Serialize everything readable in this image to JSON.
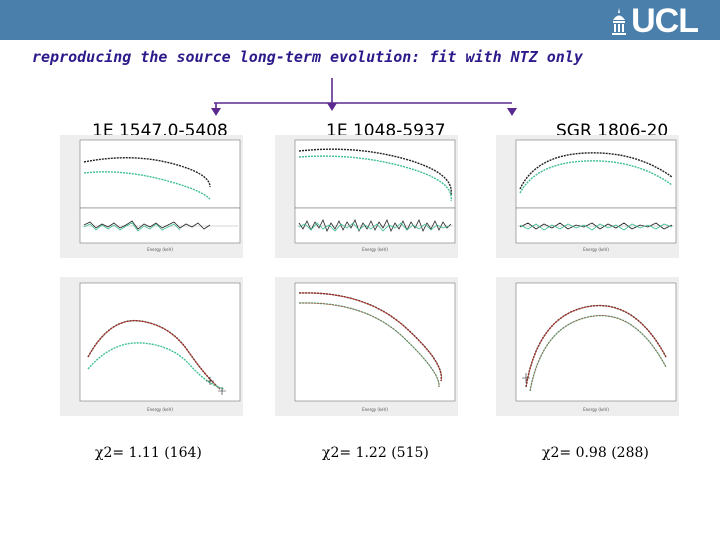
{
  "header": {
    "logo_text": "UCL"
  },
  "slide": {
    "title": "reproducing the source long-term evolution: fit with NTZ only"
  },
  "sources": [
    {
      "name": "1E 1547.0-5408",
      "chi2": "χ2= 1.11 (164)"
    },
    {
      "name": "1E 1048-5937",
      "chi2": "χ2= 1.22 (515)"
    },
    {
      "name": "SGR 1806-20",
      "chi2": "χ2= 0.98 (288)"
    }
  ],
  "colors": {
    "header_bar": "#4a7fab",
    "title": "#2a1a8a",
    "arrow": "#5a2a90",
    "series_dark": "#222222",
    "series_green": "#3fbf8f",
    "series_red": "#c0392b"
  }
}
